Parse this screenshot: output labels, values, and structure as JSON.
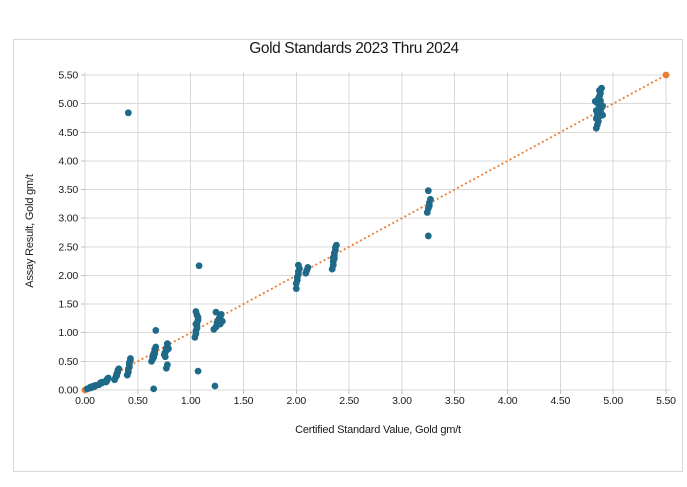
{
  "chart_data": {
    "type": "scatter",
    "title": "Gold Standards 2023 Thru 2024",
    "xlabel": "Certified Standard Value, Gold gm/t",
    "ylabel": "Assay Result, Gold gm/t",
    "xlim": [
      0,
      5.5
    ],
    "ylim": [
      0,
      5.5
    ],
    "grid": true,
    "x_tick_labels": [
      "0.00",
      "0.50",
      "1.00",
      "1.50",
      "2.00",
      "2.50",
      "3.00",
      "3.50",
      "4.00",
      "4.50",
      "5.00",
      "5.50"
    ],
    "y_tick_labels": [
      "0.00",
      "0.50",
      "1.00",
      "1.50",
      "2.00",
      "2.50",
      "3.00",
      "3.50",
      "4.00",
      "4.50",
      "5.00",
      "5.50"
    ],
    "point_color": "#1f6989",
    "gridline_color": "#d9d9d9",
    "border_color": "#d9d9d9",
    "tick_color": "#bfbfbf",
    "text_color": "#1a1a1a",
    "reference_line": {
      "style": "dotted",
      "color": "#ed7d31",
      "from": [
        0,
        0
      ],
      "to": [
        5.5,
        5.5
      ],
      "endpoint_markers": true
    },
    "points": [
      [
        0.02,
        0.02
      ],
      [
        0.04,
        0.03
      ],
      [
        0.05,
        0.05
      ],
      [
        0.06,
        0.04
      ],
      [
        0.07,
        0.06
      ],
      [
        0.08,
        0.07
      ],
      [
        0.09,
        0.06
      ],
      [
        0.1,
        0.08
      ],
      [
        0.13,
        0.09
      ],
      [
        0.14,
        0.11
      ],
      [
        0.15,
        0.13
      ],
      [
        0.16,
        0.12
      ],
      [
        0.17,
        0.14
      ],
      [
        0.2,
        0.14
      ],
      [
        0.21,
        0.17
      ],
      [
        0.21,
        0.19
      ],
      [
        0.22,
        0.21
      ],
      [
        0.28,
        0.18
      ],
      [
        0.29,
        0.22
      ],
      [
        0.3,
        0.25
      ],
      [
        0.3,
        0.28
      ],
      [
        0.31,
        0.31
      ],
      [
        0.31,
        0.34
      ],
      [
        0.32,
        0.37
      ],
      [
        0.4,
        0.26
      ],
      [
        0.41,
        0.31
      ],
      [
        0.41,
        0.36
      ],
      [
        0.42,
        0.4
      ],
      [
        0.42,
        0.44
      ],
      [
        0.42,
        0.48
      ],
      [
        0.43,
        0.52
      ],
      [
        0.43,
        0.55
      ],
      [
        0.41,
        4.84
      ],
      [
        0.63,
        0.5
      ],
      [
        0.64,
        0.54
      ],
      [
        0.64,
        0.58
      ],
      [
        0.65,
        0.61
      ],
      [
        0.65,
        0.64
      ],
      [
        0.66,
        0.67
      ],
      [
        0.66,
        0.71
      ],
      [
        0.67,
        0.75
      ],
      [
        0.65,
        0.57
      ],
      [
        0.66,
        0.63
      ],
      [
        0.67,
        1.04
      ],
      [
        0.65,
        0.02
      ],
      [
        0.75,
        0.62
      ],
      [
        0.76,
        0.66
      ],
      [
        0.77,
        0.69
      ],
      [
        0.77,
        0.73
      ],
      [
        0.78,
        0.77
      ],
      [
        0.78,
        0.81
      ],
      [
        0.79,
        0.72
      ],
      [
        0.76,
        0.58
      ],
      [
        0.77,
        0.38
      ],
      [
        0.78,
        0.44
      ],
      [
        1.04,
        0.92
      ],
      [
        1.05,
        0.98
      ],
      [
        1.05,
        1.03
      ],
      [
        1.06,
        1.08
      ],
      [
        1.06,
        1.12
      ],
      [
        1.06,
        1.17
      ],
      [
        1.07,
        1.22
      ],
      [
        1.07,
        1.27
      ],
      [
        1.05,
        1.15
      ],
      [
        1.06,
        1.31
      ],
      [
        1.05,
        1.37
      ],
      [
        1.08,
        2.17
      ],
      [
        1.07,
        0.33
      ],
      [
        1.22,
        1.06
      ],
      [
        1.24,
        1.1
      ],
      [
        1.25,
        1.14
      ],
      [
        1.25,
        1.18
      ],
      [
        1.26,
        1.21
      ],
      [
        1.27,
        1.25
      ],
      [
        1.28,
        1.28
      ],
      [
        1.29,
        1.32
      ],
      [
        1.3,
        1.2
      ],
      [
        1.28,
        1.15
      ],
      [
        1.24,
        1.36
      ],
      [
        1.23,
        0.07
      ],
      [
        2.0,
        1.77
      ],
      [
        2.0,
        1.86
      ],
      [
        2.01,
        1.92
      ],
      [
        2.01,
        1.97
      ],
      [
        2.02,
        2.02
      ],
      [
        2.02,
        2.07
      ],
      [
        2.03,
        2.12
      ],
      [
        2.02,
        2.18
      ],
      [
        2.09,
        2.04
      ],
      [
        2.1,
        2.09
      ],
      [
        2.11,
        2.14
      ],
      [
        2.34,
        2.11
      ],
      [
        2.35,
        2.18
      ],
      [
        2.35,
        2.24
      ],
      [
        2.36,
        2.29
      ],
      [
        2.36,
        2.34
      ],
      [
        2.36,
        2.39
      ],
      [
        2.37,
        2.44
      ],
      [
        2.37,
        2.49
      ],
      [
        2.38,
        2.53
      ],
      [
        2.35,
        2.31
      ],
      [
        3.24,
        3.1
      ],
      [
        3.25,
        3.17
      ],
      [
        3.26,
        3.22
      ],
      [
        3.26,
        3.27
      ],
      [
        3.27,
        3.33
      ],
      [
        3.25,
        3.48
      ],
      [
        3.25,
        2.69
      ],
      [
        4.84,
        4.57
      ],
      [
        4.85,
        4.63
      ],
      [
        4.86,
        4.69
      ],
      [
        4.84,
        4.74
      ],
      [
        4.87,
        4.78
      ],
      [
        4.85,
        4.82
      ],
      [
        4.88,
        4.86
      ],
      [
        4.86,
        4.9
      ],
      [
        4.89,
        4.93
      ],
      [
        4.87,
        4.97
      ],
      [
        4.85,
        5.01
      ],
      [
        4.88,
        5.05
      ],
      [
        4.86,
        5.09
      ],
      [
        4.87,
        5.13
      ],
      [
        4.88,
        5.18
      ],
      [
        4.87,
        5.23
      ],
      [
        4.89,
        5.27
      ],
      [
        4.84,
        4.88
      ],
      [
        4.9,
        4.96
      ],
      [
        4.83,
        5.04
      ],
      [
        4.9,
        4.8
      ],
      [
        4.86,
        5.0
      ]
    ]
  }
}
